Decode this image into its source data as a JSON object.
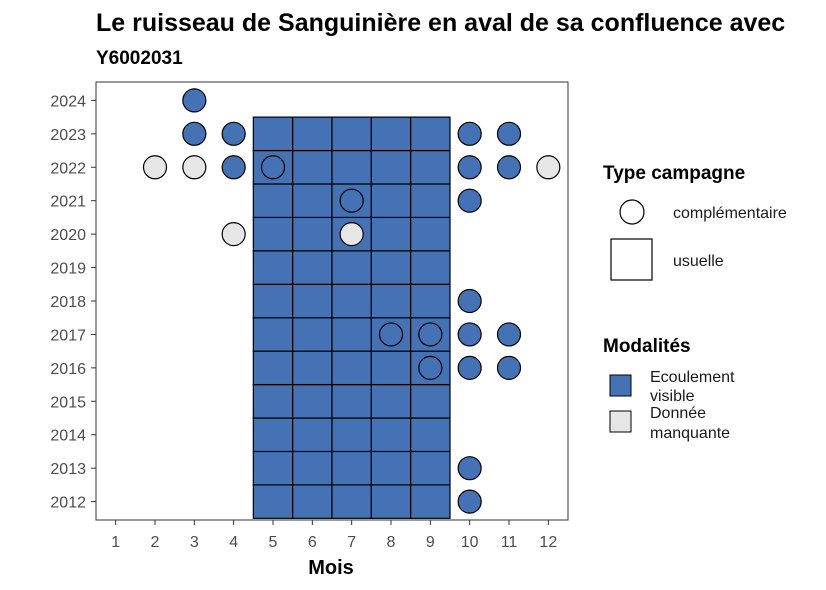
{
  "chart_data": {
    "type": "scatter",
    "title": "Le ruisseau de Sanguinière en aval de sa confluence avec",
    "subtitle": "Y6002031",
    "xlabel": "Mois",
    "ylabel": "",
    "x_ticks": [
      1,
      2,
      3,
      4,
      5,
      6,
      7,
      8,
      9,
      10,
      11,
      12
    ],
    "y_ticks": [
      2012,
      2013,
      2014,
      2015,
      2016,
      2017,
      2018,
      2019,
      2020,
      2021,
      2022,
      2023,
      2024
    ],
    "xlim": [
      0.5,
      12.5
    ],
    "ylim": [
      2011.45,
      2024.55
    ],
    "colors": {
      "Ecoulement visible": "#4472b4",
      "Donnée manquante": "#e6e6e6"
    },
    "usuelle": {
      "months": [
        5,
        6,
        7,
        8,
        9
      ],
      "years": [
        2012,
        2013,
        2014,
        2015,
        2016,
        2017,
        2018,
        2019,
        2020,
        2021,
        2022,
        2023
      ],
      "modalite": "Ecoulement visible"
    },
    "complementaire": [
      {
        "month": 3,
        "year": 2024,
        "modalite": "Ecoulement visible"
      },
      {
        "month": 3,
        "year": 2023,
        "modalite": "Ecoulement visible"
      },
      {
        "month": 4,
        "year": 2023,
        "modalite": "Ecoulement visible"
      },
      {
        "month": 10,
        "year": 2023,
        "modalite": "Ecoulement visible"
      },
      {
        "month": 11,
        "year": 2023,
        "modalite": "Ecoulement visible"
      },
      {
        "month": 2,
        "year": 2022,
        "modalite": "Donnée manquante"
      },
      {
        "month": 3,
        "year": 2022,
        "modalite": "Donnée manquante"
      },
      {
        "month": 4,
        "year": 2022,
        "modalite": "Ecoulement visible"
      },
      {
        "month": 5,
        "year": 2022,
        "modalite": "Ecoulement visible"
      },
      {
        "month": 10,
        "year": 2022,
        "modalite": "Ecoulement visible"
      },
      {
        "month": 11,
        "year": 2022,
        "modalite": "Ecoulement visible"
      },
      {
        "month": 12,
        "year": 2022,
        "modalite": "Donnée manquante"
      },
      {
        "month": 7,
        "year": 2021,
        "modalite": "Ecoulement visible"
      },
      {
        "month": 10,
        "year": 2021,
        "modalite": "Ecoulement visible"
      },
      {
        "month": 4,
        "year": 2020,
        "modalite": "Donnée manquante"
      },
      {
        "month": 7,
        "year": 2020,
        "modalite": "Donnée manquante"
      },
      {
        "month": 10,
        "year": 2018,
        "modalite": "Ecoulement visible"
      },
      {
        "month": 8,
        "year": 2017,
        "modalite": "Ecoulement visible"
      },
      {
        "month": 9,
        "year": 2017,
        "modalite": "Ecoulement visible"
      },
      {
        "month": 10,
        "year": 2017,
        "modalite": "Ecoulement visible"
      },
      {
        "month": 11,
        "year": 2017,
        "modalite": "Ecoulement visible"
      },
      {
        "month": 9,
        "year": 2016,
        "modalite": "Ecoulement visible"
      },
      {
        "month": 10,
        "year": 2016,
        "modalite": "Ecoulement visible"
      },
      {
        "month": 11,
        "year": 2016,
        "modalite": "Ecoulement visible"
      },
      {
        "month": 10,
        "year": 2013,
        "modalite": "Ecoulement visible"
      },
      {
        "month": 10,
        "year": 2012,
        "modalite": "Ecoulement visible"
      }
    ],
    "legend": {
      "type_title": "Type campagne",
      "type_items": [
        {
          "shape": "circle",
          "label": "complémentaire"
        },
        {
          "shape": "square",
          "label": "usuelle"
        }
      ],
      "modalites_title": "Modalités",
      "modalites_items": [
        {
          "line1": "Ecoulement",
          "line2": "visible",
          "color": "#4472b4"
        },
        {
          "line1": "Donnée",
          "line2": "manquante",
          "color": "#e6e6e6"
        }
      ],
      "position": "right"
    }
  }
}
